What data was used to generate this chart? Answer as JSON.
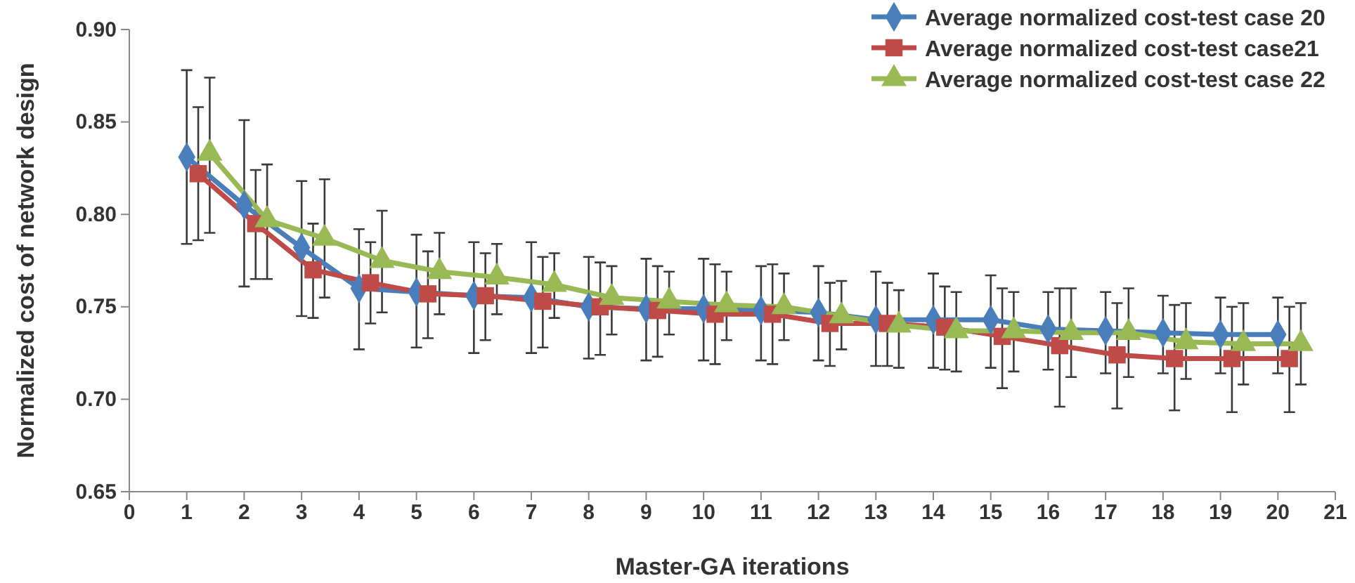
{
  "chart_data": {
    "type": "line",
    "xlabel": "Master-GA iterations",
    "ylabel": "Normalized cost of network design",
    "xlim": [
      0,
      21
    ],
    "xticks": [
      0,
      1,
      2,
      3,
      4,
      5,
      6,
      7,
      8,
      9,
      10,
      11,
      12,
      13,
      14,
      15,
      16,
      17,
      18,
      19,
      20,
      21
    ],
    "ylim": [
      0.65,
      0.9
    ],
    "yticks": [
      {
        "value": 0.65,
        "label": "0.65"
      },
      {
        "value": 0.7,
        "label": "0.70"
      },
      {
        "value": 0.75,
        "label": "0.75"
      },
      {
        "value": 0.8,
        "label": "0.80"
      },
      {
        "value": 0.85,
        "label": "0.85"
      },
      {
        "value": 0.9,
        "label": "0.90"
      }
    ],
    "grid": false,
    "legend": "top right",
    "line_style": "solid",
    "series": [
      {
        "name": "Average normalized cost-test case 20",
        "color": "#4a7ebb",
        "marker": "diamond",
        "x": [
          1,
          2,
          3,
          4,
          5,
          6,
          7,
          8,
          9,
          10,
          11,
          12,
          13,
          14,
          15,
          16,
          17,
          18,
          19,
          20
        ],
        "values": [
          0.831,
          0.805,
          0.782,
          0.76,
          0.758,
          0.756,
          0.755,
          0.75,
          0.749,
          0.749,
          0.748,
          0.747,
          0.743,
          0.743,
          0.743,
          0.738,
          0.737,
          0.736,
          0.735,
          0.735
        ],
        "errors": [
          [
            0.784,
            0.878
          ],
          [
            0.761,
            0.851
          ],
          [
            0.745,
            0.818
          ],
          [
            0.727,
            0.792
          ],
          [
            0.728,
            0.789
          ],
          [
            0.725,
            0.785
          ],
          [
            0.725,
            0.785
          ],
          [
            0.722,
            0.777
          ],
          [
            0.721,
            0.776
          ],
          [
            0.721,
            0.776
          ],
          [
            0.721,
            0.772
          ],
          [
            0.721,
            0.772
          ],
          [
            0.718,
            0.769
          ],
          [
            0.717,
            0.768
          ],
          [
            0.717,
            0.767
          ],
          [
            0.716,
            0.758
          ],
          [
            0.714,
            0.758
          ],
          [
            0.714,
            0.756
          ],
          [
            0.714,
            0.755
          ],
          [
            0.714,
            0.755
          ]
        ]
      },
      {
        "name": "Average normalized cost-test case21",
        "color": "#be4b48",
        "marker": "square",
        "x": [
          1.2,
          2.2,
          3.2,
          4.2,
          5.2,
          6.2,
          7.2,
          8.2,
          9.2,
          10.2,
          11.2,
          12.2,
          13.2,
          14.2,
          15.2,
          16.2,
          17.2,
          18.2,
          19.2,
          20.2
        ],
        "values": [
          0.822,
          0.795,
          0.77,
          0.763,
          0.757,
          0.756,
          0.753,
          0.75,
          0.748,
          0.746,
          0.746,
          0.741,
          0.741,
          0.739,
          0.734,
          0.729,
          0.724,
          0.722,
          0.722,
          0.722
        ],
        "errors": [
          [
            0.786,
            0.858
          ],
          [
            0.765,
            0.824
          ],
          [
            0.744,
            0.795
          ],
          [
            0.741,
            0.785
          ],
          [
            0.733,
            0.78
          ],
          [
            0.732,
            0.779
          ],
          [
            0.728,
            0.777
          ],
          [
            0.724,
            0.774
          ],
          [
            0.723,
            0.772
          ],
          [
            0.719,
            0.773
          ],
          [
            0.719,
            0.773
          ],
          [
            0.718,
            0.763
          ],
          [
            0.718,
            0.763
          ],
          [
            0.716,
            0.761
          ],
          [
            0.706,
            0.76
          ],
          [
            0.696,
            0.76
          ],
          [
            0.695,
            0.752
          ],
          [
            0.694,
            0.751
          ],
          [
            0.693,
            0.75
          ],
          [
            0.693,
            0.75
          ]
        ]
      },
      {
        "name": "Average normalized cost-test case 22",
        "color": "#98b954",
        "marker": "triangle",
        "x": [
          1.4,
          2.4,
          3.4,
          4.4,
          5.4,
          6.4,
          7.4,
          8.4,
          9.4,
          10.4,
          11.4,
          12.4,
          13.4,
          14.4,
          15.4,
          16.4,
          17.4,
          18.4,
          19.4,
          20.4
        ],
        "values": [
          0.833,
          0.797,
          0.787,
          0.775,
          0.769,
          0.766,
          0.762,
          0.755,
          0.753,
          0.751,
          0.75,
          0.745,
          0.74,
          0.737,
          0.737,
          0.736,
          0.736,
          0.731,
          0.73,
          0.73
        ],
        "errors": [
          [
            0.79,
            0.874
          ],
          [
            0.765,
            0.827
          ],
          [
            0.755,
            0.819
          ],
          [
            0.747,
            0.802
          ],
          [
            0.746,
            0.79
          ],
          [
            0.746,
            0.784
          ],
          [
            0.744,
            0.779
          ],
          [
            0.735,
            0.772
          ],
          [
            0.735,
            0.769
          ],
          [
            0.732,
            0.769
          ],
          [
            0.732,
            0.768
          ],
          [
            0.727,
            0.764
          ],
          [
            0.717,
            0.759
          ],
          [
            0.715,
            0.758
          ],
          [
            0.715,
            0.758
          ],
          [
            0.712,
            0.76
          ],
          [
            0.712,
            0.76
          ],
          [
            0.711,
            0.752
          ],
          [
            0.708,
            0.752
          ],
          [
            0.708,
            0.752
          ]
        ]
      }
    ]
  }
}
